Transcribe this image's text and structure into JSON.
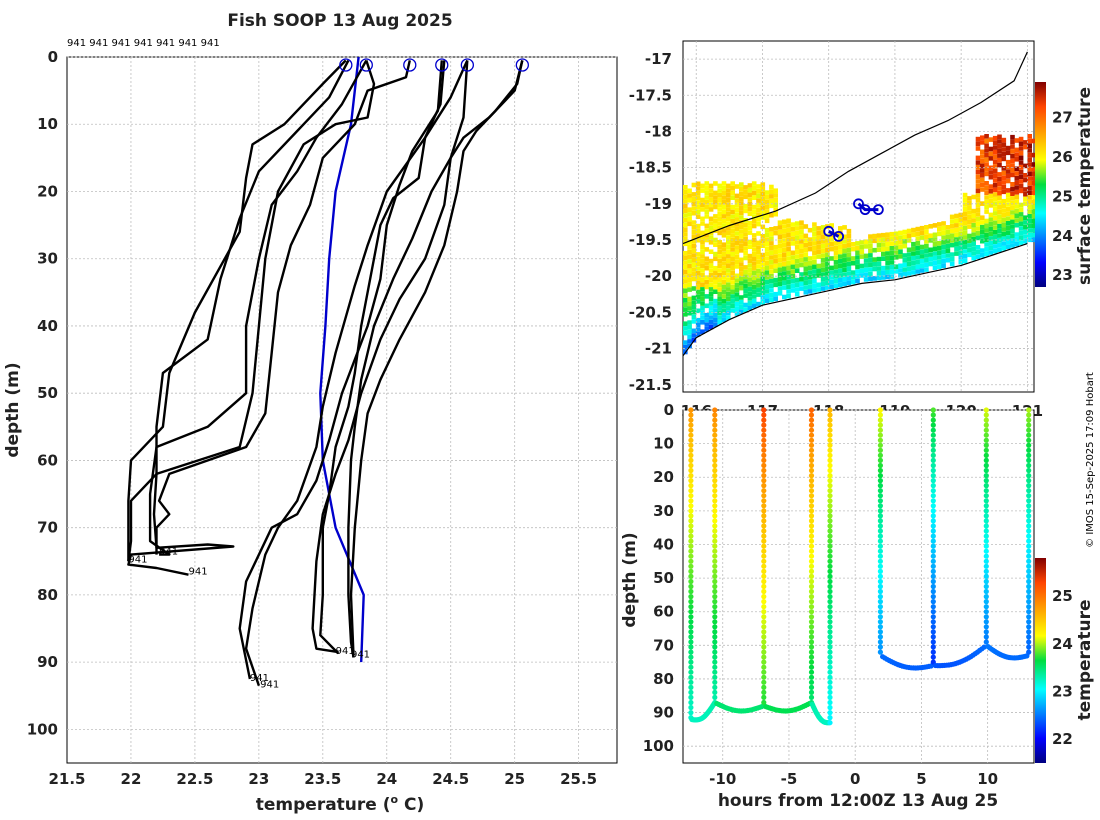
{
  "title": "Fish SOOP 13 Aug 2025",
  "credit": "© IMOS 15-Sep-2025 17:09 Hobart",
  "chart_data": [
    {
      "type": "line",
      "name": "temperature-depth profiles",
      "xlabel": "temperature (",
      "xlabel_unit": "o",
      "xlabel_end": " C)",
      "ylabel": "depth (m)",
      "xlim": [
        21.5,
        25.8
      ],
      "ylim": [
        105,
        0
      ],
      "x_ticks": [
        21.5,
        22,
        22.5,
        23,
        23.5,
        24,
        24.5,
        25,
        25.5
      ],
      "y_ticks": [
        0,
        10,
        20,
        30,
        40,
        50,
        60,
        70,
        80,
        90,
        100
      ],
      "top_labels": "941 941 941 941 941 941 941",
      "surface_markers": [
        23.68,
        23.84,
        24.18,
        24.43,
        24.63,
        25.06
      ],
      "end_labels": [
        {
          "text": "941",
          "x": 21.98,
          "y": 75.2
        },
        {
          "text": "941",
          "x": 22.22,
          "y": 74.0
        },
        {
          "text": "941",
          "x": 22.45,
          "y": 77.0
        },
        {
          "text": "941",
          "x": 23.6,
          "y": 88.8
        },
        {
          "text": "941",
          "x": 23.72,
          "y": 89.3
        },
        {
          "text": "941",
          "x": 22.93,
          "y": 92.8
        },
        {
          "text": "941",
          "x": 23.01,
          "y": 93.8
        }
      ],
      "series": [
        {
          "name": "climatology",
          "color": "#0000cc",
          "points": [
            [
              23.78,
              0
            ],
            [
              23.72,
              10
            ],
            [
              23.6,
              20
            ],
            [
              23.55,
              30
            ],
            [
              23.52,
              40
            ],
            [
              23.48,
              50
            ],
            [
              23.5,
              60
            ],
            [
              23.6,
              70
            ],
            [
              23.82,
              80
            ],
            [
              23.8,
              90
            ]
          ]
        },
        {
          "name": "profile-1",
          "color": "#000000",
          "points": [
            [
              23.68,
              0.5
            ],
            [
              23.5,
              4
            ],
            [
              23.2,
              10
            ],
            [
              22.95,
              13
            ],
            [
              22.9,
              18
            ],
            [
              22.85,
              26
            ],
            [
              22.5,
              38
            ],
            [
              22.3,
              47
            ],
            [
              22.25,
              55
            ],
            [
              22.0,
              60
            ],
            [
              21.98,
              66
            ],
            [
              21.98,
              75
            ]
          ]
        },
        {
          "name": "profile-2",
          "color": "#000000",
          "points": [
            [
              23.7,
              0.5
            ],
            [
              23.55,
              6
            ],
            [
              23.3,
              11
            ],
            [
              23.0,
              17
            ],
            [
              22.85,
              24
            ],
            [
              22.7,
              33
            ],
            [
              22.6,
              42
            ],
            [
              22.25,
              47
            ],
            [
              22.2,
              55
            ],
            [
              22.2,
              62
            ],
            [
              22.18,
              68
            ],
            [
              22.2,
              73
            ],
            [
              22.6,
              72.5
            ],
            [
              22.8,
              72.8
            ],
            [
              22.0,
              74
            ],
            [
              21.98,
              75.5
            ],
            [
              22.2,
              76
            ],
            [
              22.45,
              77
            ]
          ]
        },
        {
          "name": "profile-3",
          "color": "#000000",
          "points": [
            [
              23.84,
              0.5
            ],
            [
              23.65,
              7
            ],
            [
              23.45,
              12
            ],
            [
              23.3,
              17
            ],
            [
              23.1,
              22
            ],
            [
              23.0,
              30
            ],
            [
              22.9,
              40
            ],
            [
              22.9,
              50
            ],
            [
              22.6,
              55
            ],
            [
              22.2,
              58
            ],
            [
              22.15,
              65
            ],
            [
              22.15,
              72
            ],
            [
              22.3,
              74
            ],
            [
              22.22,
              74
            ]
          ]
        },
        {
          "name": "profile-4",
          "color": "#000000",
          "points": [
            [
              23.84,
              0.5
            ],
            [
              23.9,
              4
            ],
            [
              23.85,
              9
            ],
            [
              23.6,
              10
            ],
            [
              23.35,
              13
            ],
            [
              23.15,
              20
            ],
            [
              23.05,
              30
            ],
            [
              23.0,
              40
            ],
            [
              22.95,
              50
            ],
            [
              22.85,
              58
            ],
            [
              22.2,
              62
            ],
            [
              22.0,
              66
            ],
            [
              22.0,
              72
            ],
            [
              21.98,
              75
            ]
          ]
        },
        {
          "name": "profile-5",
          "color": "#000000",
          "points": [
            [
              24.18,
              0.5
            ],
            [
              24.15,
              3
            ],
            [
              23.85,
              5
            ],
            [
              23.75,
              10
            ],
            [
              23.5,
              15
            ],
            [
              23.4,
              22
            ],
            [
              23.25,
              28
            ],
            [
              23.15,
              35
            ],
            [
              23.1,
              44
            ],
            [
              23.05,
              53
            ],
            [
              22.9,
              58
            ],
            [
              22.3,
              62
            ],
            [
              22.22,
              66
            ],
            [
              22.3,
              68
            ],
            [
              22.2,
              70
            ],
            [
              22.2,
              74
            ]
          ]
        },
        {
          "name": "profile-6",
          "color": "#000000",
          "points": [
            [
              24.43,
              0.5
            ],
            [
              24.4,
              8
            ],
            [
              24.2,
              14
            ],
            [
              24.1,
              19
            ],
            [
              24.0,
              25
            ],
            [
              23.95,
              33
            ],
            [
              23.85,
              40
            ],
            [
              23.75,
              45
            ],
            [
              23.65,
              50
            ],
            [
              23.55,
              57
            ],
            [
              23.45,
              63
            ],
            [
              23.3,
              68
            ],
            [
              23.1,
              70
            ],
            [
              22.9,
              78
            ],
            [
              22.85,
              85
            ],
            [
              22.93,
              92.5
            ]
          ]
        },
        {
          "name": "profile-7",
          "color": "#000000",
          "points": [
            [
              24.63,
              0.5
            ],
            [
              24.5,
              6
            ],
            [
              24.3,
              12
            ],
            [
              24.25,
              18
            ],
            [
              24.05,
              21
            ],
            [
              23.95,
              25
            ],
            [
              23.9,
              30
            ],
            [
              23.8,
              40
            ],
            [
              23.75,
              47
            ],
            [
              23.7,
              52
            ],
            [
              23.6,
              58
            ],
            [
              23.55,
              65
            ],
            [
              23.5,
              70
            ],
            [
              23.5,
              80
            ],
            [
              23.48,
              86
            ],
            [
              23.62,
              88.7
            ]
          ]
        },
        {
          "name": "profile-8",
          "color": "#000000",
          "points": [
            [
              25.06,
              0.5
            ],
            [
              25.0,
              5
            ],
            [
              24.8,
              9
            ],
            [
              24.6,
              12
            ],
            [
              24.5,
              15
            ],
            [
              24.35,
              20
            ],
            [
              24.2,
              27
            ],
            [
              24.05,
              33
            ],
            [
              23.9,
              40
            ],
            [
              23.8,
              48
            ],
            [
              23.75,
              55
            ],
            [
              23.72,
              60
            ],
            [
              23.7,
              70
            ],
            [
              23.7,
              80
            ],
            [
              23.72,
              87
            ],
            [
              23.74,
              89.3
            ]
          ]
        },
        {
          "name": "profile-9",
          "color": "#000000",
          "points": [
            [
              24.45,
              0.5
            ],
            [
              24.42,
              7
            ],
            [
              24.3,
              12
            ],
            [
              24.0,
              20
            ],
            [
              23.85,
              28
            ],
            [
              23.75,
              34
            ],
            [
              23.6,
              44
            ],
            [
              23.5,
              52
            ],
            [
              23.45,
              58
            ],
            [
              23.3,
              66
            ],
            [
              23.15,
              70
            ],
            [
              23.05,
              74
            ],
            [
              22.95,
              82
            ],
            [
              22.9,
              88
            ],
            [
              23.0,
              93.5
            ]
          ]
        },
        {
          "name": "profile-10",
          "color": "#000000",
          "points": [
            [
              24.63,
              0.5
            ],
            [
              24.6,
              9
            ],
            [
              24.5,
              15
            ],
            [
              24.45,
              22
            ],
            [
              24.3,
              30
            ],
            [
              24.1,
              36
            ],
            [
              23.95,
              42
            ],
            [
              23.8,
              50
            ],
            [
              23.7,
              57
            ],
            [
              23.6,
              62
            ],
            [
              23.5,
              68
            ],
            [
              23.45,
              75
            ],
            [
              23.42,
              85
            ],
            [
              23.45,
              88
            ],
            [
              23.62,
              88.5
            ]
          ]
        },
        {
          "name": "profile-11",
          "color": "#000000",
          "points": [
            [
              25.06,
              0.5
            ],
            [
              25.02,
              4
            ],
            [
              24.85,
              8
            ],
            [
              24.7,
              11
            ],
            [
              24.6,
              14
            ],
            [
              24.55,
              20
            ],
            [
              24.45,
              28
            ],
            [
              24.3,
              35
            ],
            [
              24.1,
              42
            ],
            [
              23.95,
              48
            ],
            [
              23.85,
              53
            ],
            [
              23.8,
              60
            ],
            [
              23.75,
              70
            ],
            [
              23.72,
              80
            ],
            [
              23.74,
              89
            ]
          ]
        }
      ]
    },
    {
      "type": "heatmap",
      "name": "surface temperature map",
      "xlim": [
        115.8,
        121.1
      ],
      "ylim": [
        -21.6,
        -16.75
      ],
      "x_ticks": [
        116,
        117,
        118,
        119,
        120,
        121
      ],
      "y_ticks": [
        -17,
        -17.5,
        -18,
        -18.5,
        -19,
        -19.5,
        -20,
        -20.5,
        -21,
        -21.5
      ],
      "y_tick_labels": [
        "-17",
        "-17.5",
        "-18",
        "-18.5",
        "-19",
        "-19.5",
        "-20",
        "-20.5",
        "-21",
        "-21.5"
      ],
      "colorbar_label": "surface temperature",
      "colorbar_ticks": [
        23,
        24,
        25,
        26,
        27
      ],
      "colorbar_range": [
        22.7,
        27.9
      ],
      "track": [
        [
          118.0,
          -19.38
        ],
        [
          118.15,
          -19.45
        ],
        [
          118.45,
          -19.0
        ],
        [
          118.55,
          -19.08
        ],
        [
          118.75,
          -19.08
        ]
      ],
      "coast": [
        [
          115.8,
          -21.1
        ],
        [
          116.0,
          -20.85
        ],
        [
          116.5,
          -20.6
        ],
        [
          117.0,
          -20.4
        ],
        [
          117.5,
          -20.3
        ],
        [
          118.0,
          -20.2
        ],
        [
          118.5,
          -20.1
        ],
        [
          119.0,
          -20.05
        ],
        [
          119.5,
          -19.95
        ],
        [
          120.0,
          -19.85
        ],
        [
          120.5,
          -19.7
        ],
        [
          121.0,
          -19.55
        ]
      ],
      "shelf": [
        [
          115.8,
          -19.55
        ],
        [
          116.5,
          -19.3
        ],
        [
          117.2,
          -19.1
        ],
        [
          117.8,
          -18.85
        ],
        [
          118.3,
          -18.55
        ],
        [
          118.8,
          -18.3
        ],
        [
          119.3,
          -18.05
        ],
        [
          119.8,
          -17.85
        ],
        [
          120.3,
          -17.6
        ],
        [
          120.8,
          -17.3
        ],
        [
          121.0,
          -16.9
        ]
      ]
    },
    {
      "type": "scatter",
      "name": "temperature vs time and depth",
      "xlabel": "hours from 12:00Z 13 Aug 25",
      "ylabel": "depth (m)",
      "xlim": [
        -13,
        13.5
      ],
      "ylim": [
        105,
        0
      ],
      "x_ticks": [
        -10,
        -5,
        0,
        5,
        10
      ],
      "y_ticks": [
        0,
        10,
        20,
        30,
        40,
        50,
        60,
        70,
        80,
        90,
        100
      ],
      "colorbar_label": "temperature",
      "colorbar_ticks": [
        22,
        23,
        24,
        25
      ],
      "colorbar_range": [
        21.5,
        25.8
      ],
      "casts": [
        {
          "t": -12.4,
          "bottom": 92,
          "surf_temp": 24.8
        },
        {
          "t": -10.6,
          "bottom": 87,
          "surf_temp": 24.9
        },
        {
          "t": -6.9,
          "bottom": 88,
          "surf_temp": 25.3
        },
        {
          "t": -3.3,
          "bottom": 87,
          "surf_temp": 25.1
        },
        {
          "t": -1.9,
          "bottom": 93,
          "surf_temp": 24.6
        },
        {
          "t": 1.9,
          "bottom": 73,
          "surf_temp": 24.2
        },
        {
          "t": 5.9,
          "bottom": 76,
          "surf_temp": 23.8
        },
        {
          "t": 9.9,
          "bottom": 70,
          "surf_temp": 24.1
        },
        {
          "t": 13.1,
          "bottom": 73,
          "surf_temp": 24.0
        }
      ]
    }
  ]
}
